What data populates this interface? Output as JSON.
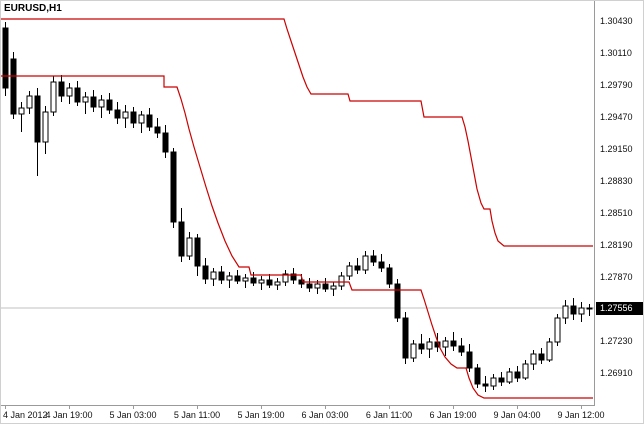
{
  "window": {
    "background": "#ffffff"
  },
  "chart": {
    "symbol_label": "EURUSD,H1",
    "current_price": {
      "value": "1.27556",
      "price": 1.27556,
      "box_color": "#000000",
      "text_color": "#ffffff",
      "line_color": "#c0c0c0"
    }
  },
  "chart_data": {
    "type": "candlestick",
    "title": "EURUSD,H1",
    "symbol": "EURUSD",
    "timeframe": "H1",
    "grid": "off",
    "legend": "none",
    "price_top": 1.3063,
    "price_bottom": 1.2659,
    "y_axis_labels": [
      "1.30430",
      "1.30110",
      "1.29790",
      "1.29470",
      "1.29150",
      "1.28830",
      "1.28510",
      "1.28190",
      "1.27870",
      "1.27230",
      "1.26910"
    ],
    "x_axis_labels": [
      "4 Jan 2012",
      "4 Jan 19:00",
      "5 Jan 03:00",
      "5 Jan 11:00",
      "5 Jan 19:00",
      "6 Jan 03:00",
      "6 Jan 11:00",
      "6 Jan 19:00",
      "9 Jan 04:00",
      "9 Jan 12:00"
    ],
    "candles": {
      "up_fill": "#ffffff",
      "down_fill": "#000000",
      "outline": "#000000",
      "ohlc": [
        [
          1.3036,
          1.3042,
          1.2968,
          1.2976
        ],
        [
          1.3005,
          1.3012,
          1.2945,
          1.295
        ],
        [
          1.295,
          1.2962,
          1.2932,
          1.2956
        ],
        [
          1.2956,
          1.2973,
          1.295,
          1.2968
        ],
        [
          1.2968,
          1.2976,
          1.2888,
          1.2922
        ],
        [
          1.2922,
          1.2958,
          1.291,
          1.2952
        ],
        [
          1.2952,
          1.2988,
          1.2948,
          1.2982
        ],
        [
          1.2982,
          1.2989,
          1.2962,
          1.2968
        ],
        [
          1.2968,
          1.2981,
          1.296,
          1.2976
        ],
        [
          1.2976,
          1.2983,
          1.2958,
          1.2962
        ],
        [
          1.2962,
          1.2972,
          1.295,
          1.2967
        ],
        [
          1.2967,
          1.2974,
          1.2952,
          1.2957
        ],
        [
          1.2957,
          1.2969,
          1.2946,
          1.2964
        ],
        [
          1.2964,
          1.2971,
          1.295,
          1.2954
        ],
        [
          1.2954,
          1.2962,
          1.294,
          1.2946
        ],
        [
          1.2946,
          1.2959,
          1.2936,
          1.2952
        ],
        [
          1.2952,
          1.2957,
          1.2936,
          1.2941
        ],
        [
          1.2941,
          1.2953,
          1.2931,
          1.2949
        ],
        [
          1.2949,
          1.2956,
          1.2933,
          1.2937
        ],
        [
          1.2937,
          1.2946,
          1.2926,
          1.2931
        ],
        [
          1.2931,
          1.2939,
          1.2906,
          1.2912
        ],
        [
          1.2912,
          1.2916,
          1.2836,
          1.2842
        ],
        [
          1.2842,
          1.2856,
          1.2802,
          1.2808
        ],
        [
          1.2808,
          1.2832,
          1.2804,
          1.2826
        ],
        [
          1.2826,
          1.283,
          1.2788,
          1.2798
        ],
        [
          1.2798,
          1.2806,
          1.278,
          1.2785
        ],
        [
          1.2785,
          1.2796,
          1.2778,
          1.2792
        ],
        [
          1.2792,
          1.2798,
          1.278,
          1.2784
        ],
        [
          1.2784,
          1.2792,
          1.2776,
          1.2788
        ],
        [
          1.2788,
          1.2794,
          1.278,
          1.2783
        ],
        [
          1.2783,
          1.279,
          1.2776,
          1.2786
        ],
        [
          1.2786,
          1.2792,
          1.2778,
          1.2781
        ],
        [
          1.2781,
          1.2788,
          1.2774,
          1.2784
        ],
        [
          1.2784,
          1.279,
          1.2776,
          1.2779
        ],
        [
          1.2779,
          1.2786,
          1.2774,
          1.2782
        ],
        [
          1.2782,
          1.2794,
          1.2778,
          1.279
        ],
        [
          1.279,
          1.2796,
          1.278,
          1.2784
        ],
        [
          1.2784,
          1.279,
          1.2776,
          1.278
        ],
        [
          1.278,
          1.2786,
          1.2772,
          1.2776
        ],
        [
          1.2776,
          1.2784,
          1.277,
          1.278
        ],
        [
          1.278,
          1.2786,
          1.2772,
          1.2775
        ],
        [
          1.2775,
          1.2782,
          1.2768,
          1.2778
        ],
        [
          1.2778,
          1.2792,
          1.2774,
          1.2788
        ],
        [
          1.2788,
          1.2802,
          1.2784,
          1.2798
        ],
        [
          1.2798,
          1.2806,
          1.279,
          1.2794
        ],
        [
          1.2794,
          1.2813,
          1.279,
          1.2808
        ],
        [
          1.2808,
          1.2814,
          1.2798,
          1.2802
        ],
        [
          1.2802,
          1.281,
          1.2792,
          1.2796
        ],
        [
          1.2796,
          1.28,
          1.2776,
          1.278
        ],
        [
          1.278,
          1.2785,
          1.2742,
          1.2746
        ],
        [
          1.2746,
          1.2752,
          1.27,
          1.2706
        ],
        [
          1.2706,
          1.2724,
          1.2702,
          1.272
        ],
        [
          1.272,
          1.273,
          1.271,
          1.2715
        ],
        [
          1.2715,
          1.2726,
          1.2706,
          1.2722
        ],
        [
          1.2722,
          1.2731,
          1.2712,
          1.2717
        ],
        [
          1.2717,
          1.2727,
          1.2708,
          1.2723
        ],
        [
          1.2723,
          1.2732,
          1.2713,
          1.2718
        ],
        [
          1.2718,
          1.2726,
          1.2708,
          1.2712
        ],
        [
          1.2712,
          1.272,
          1.2692,
          1.2696
        ],
        [
          1.2696,
          1.27,
          1.2676,
          1.268
        ],
        [
          1.268,
          1.2688,
          1.2672,
          1.2678
        ],
        [
          1.2678,
          1.269,
          1.2674,
          1.2686
        ],
        [
          1.2686,
          1.2692,
          1.2678,
          1.2682
        ],
        [
          1.2682,
          1.2696,
          1.268,
          1.2692
        ],
        [
          1.2692,
          1.2698,
          1.2682,
          1.2686
        ],
        [
          1.2686,
          1.2704,
          1.2684,
          1.27
        ],
        [
          1.27,
          1.2714,
          1.2694,
          1.271
        ],
        [
          1.271,
          1.2716,
          1.27,
          1.2704
        ],
        [
          1.2704,
          1.2726,
          1.2702,
          1.2722
        ],
        [
          1.2722,
          1.275,
          1.2718,
          1.2746
        ],
        [
          1.2746,
          1.2764,
          1.274,
          1.2758
        ],
        [
          1.2758,
          1.2766,
          1.2744,
          1.275
        ],
        [
          1.275,
          1.2762,
          1.2742,
          1.2756
        ],
        [
          1.2756,
          1.276,
          1.2748,
          1.27556
        ]
      ]
    },
    "indicator": {
      "name": "price-channel",
      "color": "#cc0000",
      "upper": [
        [
          0,
          1.3045
        ],
        [
          283,
          1.3045
        ],
        [
          286,
          1.3035
        ],
        [
          290,
          1.3023
        ],
        [
          294,
          1.3011
        ],
        [
          298,
          1.2999
        ],
        [
          302,
          1.2987
        ],
        [
          306,
          1.2977
        ],
        [
          310,
          1.297
        ],
        [
          347,
          1.297
        ],
        [
          349,
          1.2963
        ],
        [
          420,
          1.2963
        ],
        [
          423,
          1.2947
        ],
        [
          461,
          1.2947
        ],
        [
          464,
          1.2937
        ],
        [
          467,
          1.2923
        ],
        [
          470,
          1.2907
        ],
        [
          473,
          1.2891
        ],
        [
          476,
          1.2875
        ],
        [
          480,
          1.2861
        ],
        [
          483,
          1.2855
        ],
        [
          489,
          1.2855
        ],
        [
          491,
          1.2843
        ],
        [
          494,
          1.2831
        ],
        [
          497,
          1.2823
        ],
        [
          503,
          1.2818
        ],
        [
          592,
          1.2818
        ]
      ],
      "lower": [
        [
          0,
          1.2988
        ],
        [
          163,
          1.2988
        ],
        [
          163,
          1.2977
        ],
        [
          176,
          1.2977
        ],
        [
          180,
          1.2965
        ],
        [
          184,
          1.2951
        ],
        [
          188,
          1.2935
        ],
        [
          193,
          1.2917
        ],
        [
          199,
          1.2897
        ],
        [
          205,
          1.2877
        ],
        [
          211,
          1.2858
        ],
        [
          217,
          1.2841
        ],
        [
          224,
          1.2823
        ],
        [
          231,
          1.2808
        ],
        [
          238,
          1.2797
        ],
        [
          248,
          1.2797
        ],
        [
          250,
          1.2789
        ],
        [
          300,
          1.2789
        ],
        [
          302,
          1.2782
        ],
        [
          348,
          1.2782
        ],
        [
          351,
          1.2774
        ],
        [
          420,
          1.2774
        ],
        [
          423,
          1.2765
        ],
        [
          427,
          1.2752
        ],
        [
          431,
          1.2739
        ],
        [
          435,
          1.2727
        ],
        [
          439,
          1.2716
        ],
        [
          444,
          1.2707
        ],
        [
          450,
          1.27
        ],
        [
          456,
          1.2696
        ],
        [
          465,
          1.2696
        ],
        [
          468,
          1.2686
        ],
        [
          472,
          1.2676
        ],
        [
          477,
          1.2669
        ],
        [
          483,
          1.2666
        ],
        [
          592,
          1.2666
        ]
      ]
    }
  }
}
